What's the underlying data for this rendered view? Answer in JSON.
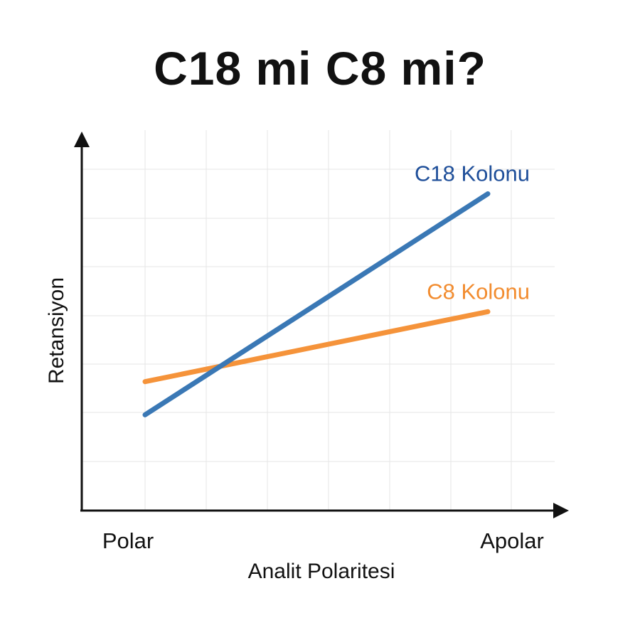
{
  "title": "C18 mi C8 mi?",
  "chart_data": {
    "type": "line",
    "title": "C18 mi C8 mi?",
    "xlabel": "Analit Polaritesi",
    "ylabel": "Retansiyon",
    "x_tick_labels": [
      "Polar",
      "Apolar"
    ],
    "x": [
      0,
      1
    ],
    "xlim": [
      0,
      1
    ],
    "ylim": [
      0,
      1
    ],
    "grid": true,
    "legend": "line-end labels",
    "series": [
      {
        "name": "C18 Kolonu",
        "color": "#3a78b5",
        "label_color": "#1f4f9a",
        "values": [
          0.26,
          0.86
        ]
      },
      {
        "name": "C8 Kolonu",
        "color": "#f5933a",
        "label_color": "#f28c2f",
        "values": [
          0.35,
          0.54
        ]
      }
    ]
  }
}
